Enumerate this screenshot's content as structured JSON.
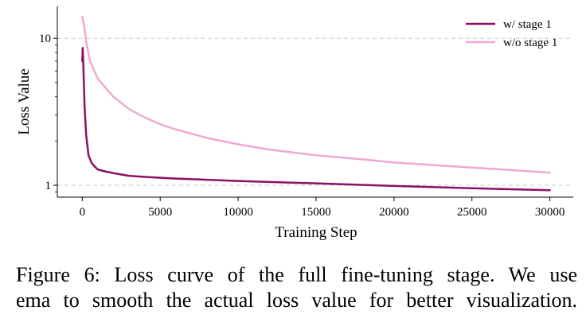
{
  "chart_data": {
    "type": "line",
    "title": "",
    "xlabel": "Training Step",
    "ylabel": "Loss Value",
    "yscale": "log",
    "xlim": [
      -1600,
      31500
    ],
    "ylim": [
      0.83,
      16.5
    ],
    "xticks": [
      0,
      5000,
      10000,
      15000,
      20000,
      25000,
      30000
    ],
    "xtick_labels": [
      "0",
      "5000",
      "10000",
      "15000",
      "20000",
      "25000",
      "30000"
    ],
    "yticks": [
      1,
      10
    ],
    "ytick_labels": [
      "1",
      "10"
    ],
    "ygrid_major": true,
    "legend_position": "top-right",
    "series": [
      {
        "name": "w/ stage 1",
        "color": "#8b1066",
        "points": [
          [
            0,
            7.0
          ],
          [
            30,
            8.6
          ],
          [
            80,
            6.0
          ],
          [
            150,
            3.4
          ],
          [
            250,
            2.2
          ],
          [
            400,
            1.6
          ],
          [
            600,
            1.42
          ],
          [
            800,
            1.34
          ],
          [
            1000,
            1.28
          ],
          [
            1500,
            1.24
          ],
          [
            2000,
            1.21
          ],
          [
            3000,
            1.16
          ],
          [
            4000,
            1.14
          ],
          [
            6000,
            1.11
          ],
          [
            8000,
            1.09
          ],
          [
            10000,
            1.07
          ],
          [
            15000,
            1.03
          ],
          [
            20000,
            0.99
          ],
          [
            25000,
            0.955
          ],
          [
            30000,
            0.925
          ]
        ]
      },
      {
        "name": "w/o stage 1",
        "color": "#f0a8d2",
        "points": [
          [
            0,
            14.0
          ],
          [
            100,
            12.5
          ],
          [
            250,
            9.5
          ],
          [
            500,
            7.0
          ],
          [
            1000,
            5.3
          ],
          [
            2000,
            4.0
          ],
          [
            3000,
            3.3
          ],
          [
            4000,
            2.9
          ],
          [
            5000,
            2.6
          ],
          [
            6000,
            2.4
          ],
          [
            8000,
            2.1
          ],
          [
            10000,
            1.9
          ],
          [
            12000,
            1.75
          ],
          [
            15000,
            1.6
          ],
          [
            18000,
            1.5
          ],
          [
            20000,
            1.43
          ],
          [
            25000,
            1.32
          ],
          [
            30000,
            1.22
          ]
        ]
      }
    ]
  },
  "caption": {
    "line1": "Figure 6: Loss curve of the full fine-tuning stage. We use",
    "line2": "ema to smooth the actual loss value for better visualization."
  }
}
